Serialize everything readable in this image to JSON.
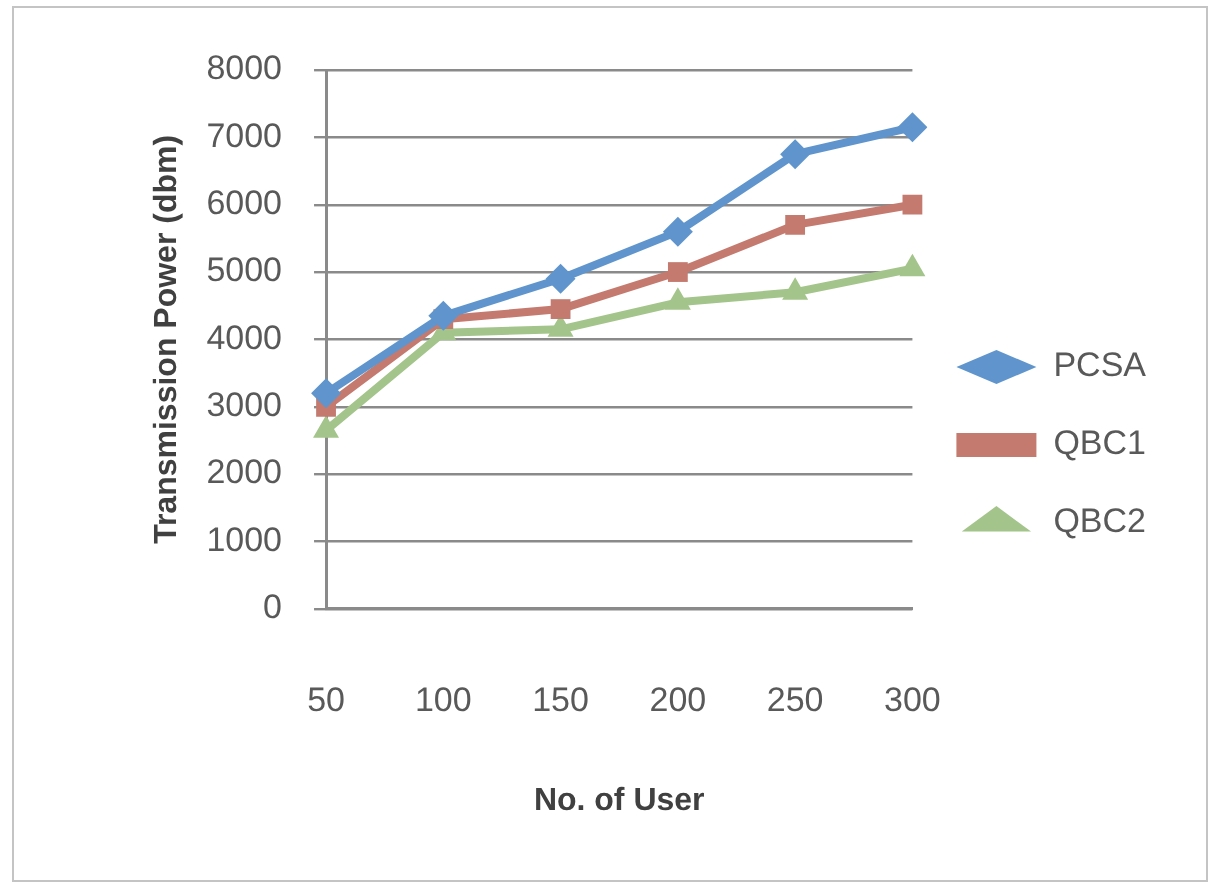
{
  "chart_data": {
    "type": "line",
    "xlabel": "No. of User",
    "ylabel": "Transmission Power (dbm)",
    "categories": [
      "50",
      "100",
      "150",
      "200",
      "250",
      "300"
    ],
    "series": [
      {
        "name": "PCSA",
        "color": "#5f95cc",
        "marker": "diamond",
        "values": [
          3200,
          4350,
          4900,
          5600,
          6750,
          7150
        ]
      },
      {
        "name": "QBC1",
        "color": "#c47a6e",
        "marker": "square",
        "values": [
          3000,
          4300,
          4450,
          5000,
          5700,
          6000
        ]
      },
      {
        "name": "QBC2",
        "color": "#a3c48a",
        "marker": "triangle",
        "values": [
          2650,
          4100,
          4150,
          4550,
          4700,
          5050
        ]
      }
    ],
    "ylim": [
      0,
      8000
    ],
    "yticks": [
      0,
      1000,
      2000,
      3000,
      4000,
      5000,
      6000,
      7000,
      8000
    ],
    "grid": "y",
    "legend": "right"
  }
}
